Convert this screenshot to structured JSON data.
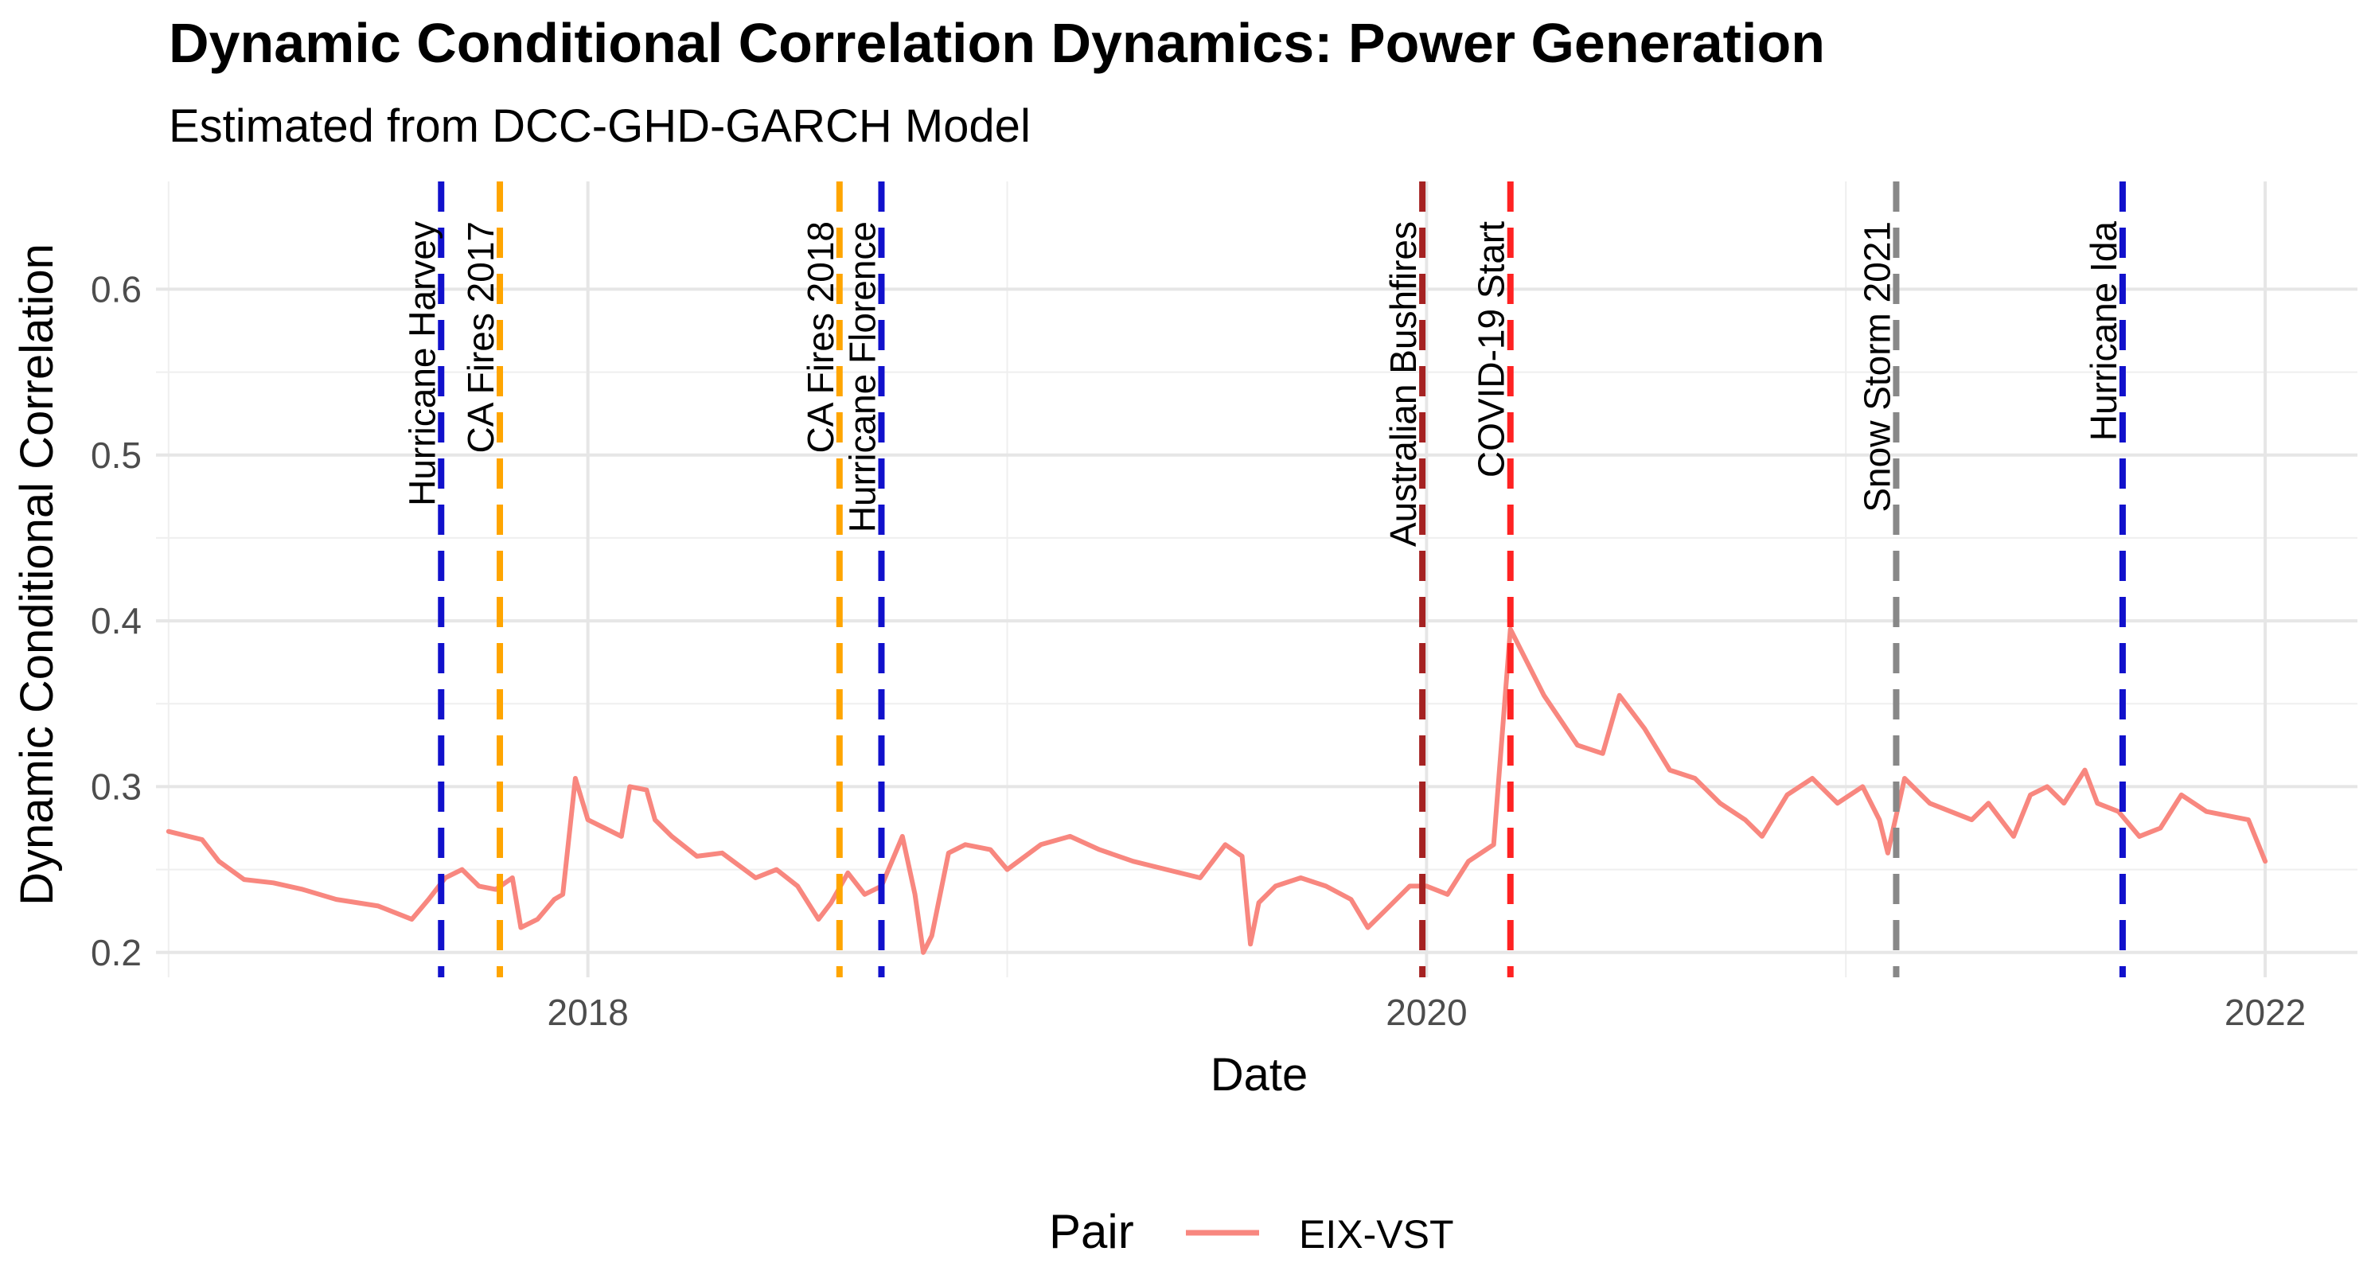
{
  "chart_data": {
    "type": "line",
    "title": "Dynamic Conditional Correlation Dynamics: Power Generation",
    "subtitle": "Estimated from DCC-GHD-GARCH Model",
    "xlabel": "Date",
    "ylabel": "Dynamic Conditional Correlation",
    "xlim": [
      2016.97,
      2022.22
    ],
    "ylim": [
      0.185,
      0.665
    ],
    "x_ticks": [
      2018,
      2020,
      2022
    ],
    "x_tick_labels": [
      "2018",
      "2020",
      "2022"
    ],
    "y_ticks": [
      0.2,
      0.3,
      0.4,
      0.5,
      0.6
    ],
    "y_tick_labels": [
      "0.2",
      "0.3",
      "0.4",
      "0.5",
      "0.6"
    ],
    "grid": true,
    "legend": {
      "title": "Pair",
      "position": "bottom",
      "entries": [
        {
          "label": "EIX-VST",
          "color": "#F8877F"
        }
      ]
    },
    "series": [
      {
        "name": "EIX-VST",
        "color": "#F8877F",
        "x": [
          2017.0,
          2017.08,
          2017.12,
          2017.18,
          2017.25,
          2017.32,
          2017.4,
          2017.5,
          2017.58,
          2017.62,
          2017.66,
          2017.7,
          2017.74,
          2017.78,
          2017.82,
          2017.84,
          2017.88,
          2017.92,
          2017.94,
          2017.97,
          2018.0,
          2018.04,
          2018.08,
          2018.1,
          2018.14,
          2018.16,
          2018.2,
          2018.26,
          2018.32,
          2018.4,
          2018.45,
          2018.5,
          2018.55,
          2018.58,
          2018.62,
          2018.66,
          2018.7,
          2018.75,
          2018.78,
          2018.8,
          2018.82,
          2018.86,
          2018.9,
          2018.96,
          2019.0,
          2019.08,
          2019.15,
          2019.22,
          2019.3,
          2019.38,
          2019.46,
          2019.52,
          2019.56,
          2019.58,
          2019.6,
          2019.64,
          2019.7,
          2019.76,
          2019.82,
          2019.86,
          2019.9,
          2019.96,
          2020.0,
          2020.05,
          2020.1,
          2020.13,
          2020.16,
          2020.18,
          2020.2,
          2020.24,
          2020.28,
          2020.32,
          2020.36,
          2020.42,
          2020.46,
          2020.52,
          2020.58,
          2020.64,
          2020.7,
          2020.76,
          2020.8,
          2020.86,
          2020.92,
          2020.98,
          2021.04,
          2021.08,
          2021.1,
          2021.14,
          2021.2,
          2021.25,
          2021.3,
          2021.34,
          2021.4,
          2021.44,
          2021.48,
          2021.52,
          2021.57,
          2021.6,
          2021.65,
          2021.7,
          2021.75,
          2021.8,
          2021.86,
          2021.92,
          2021.96,
          2022.0
        ],
        "values": [
          0.273,
          0.268,
          0.255,
          0.244,
          0.242,
          0.238,
          0.232,
          0.228,
          0.22,
          0.232,
          0.245,
          0.25,
          0.24,
          0.238,
          0.245,
          0.215,
          0.22,
          0.232,
          0.235,
          0.305,
          0.28,
          0.275,
          0.27,
          0.3,
          0.298,
          0.28,
          0.27,
          0.258,
          0.26,
          0.245,
          0.25,
          0.24,
          0.22,
          0.23,
          0.248,
          0.235,
          0.24,
          0.27,
          0.235,
          0.2,
          0.21,
          0.26,
          0.265,
          0.262,
          0.25,
          0.265,
          0.27,
          0.262,
          0.255,
          0.25,
          0.245,
          0.265,
          0.258,
          0.205,
          0.23,
          0.24,
          0.245,
          0.24,
          0.232,
          0.215,
          0.225,
          0.24,
          0.24,
          0.235,
          0.255,
          0.26,
          0.265,
          0.33,
          0.395,
          0.375,
          0.355,
          0.34,
          0.325,
          0.32,
          0.355,
          0.335,
          0.31,
          0.305,
          0.29,
          0.28,
          0.27,
          0.295,
          0.305,
          0.29,
          0.3,
          0.28,
          0.26,
          0.305,
          0.29,
          0.285,
          0.28,
          0.29,
          0.27,
          0.295,
          0.3,
          0.29,
          0.31,
          0.29,
          0.285,
          0.27,
          0.275,
          0.295,
          0.285,
          0.282,
          0.28,
          0.255
        ]
      }
    ],
    "events": [
      {
        "label": "Hurricane Harvey",
        "x": 2017.65,
        "color": "#1111CC"
      },
      {
        "label": "CA Fires 2017",
        "x": 2017.79,
        "color": "#FFA500"
      },
      {
        "label": "CA Fires 2018",
        "x": 2018.6,
        "color": "#FFA500"
      },
      {
        "label": "Hurricane Florence",
        "x": 2018.7,
        "color": "#1111CC"
      },
      {
        "label": "Australian Bushfires",
        "x": 2019.99,
        "color": "#A52222"
      },
      {
        "label": "COVID-19 Start",
        "x": 2020.2,
        "color": "#FF2222"
      },
      {
        "label": "Snow Storm 2021",
        "x": 2021.12,
        "color": "#888888"
      },
      {
        "label": "Hurricane Ida",
        "x": 2021.66,
        "color": "#1111CC"
      }
    ]
  }
}
